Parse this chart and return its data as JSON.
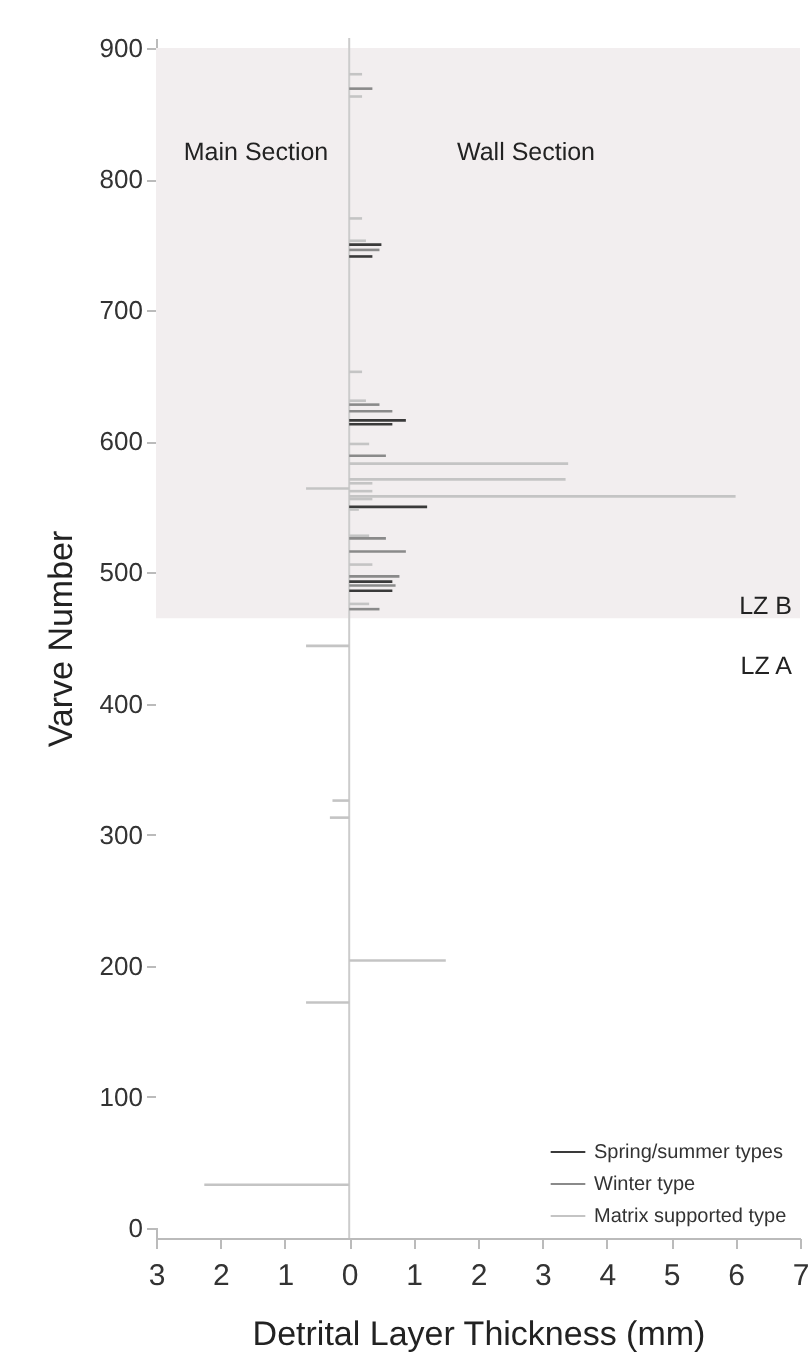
{
  "chart_data": {
    "type": "bar",
    "orientation": "horizontal",
    "xlabel": "Detrital Layer Thickness  (mm)",
    "ylabel": "Varve Number",
    "xlim": [
      -3,
      7
    ],
    "xticks": [
      {
        "value": -3,
        "label": "3"
      },
      {
        "value": -2,
        "label": "2"
      },
      {
        "value": -1,
        "label": "1"
      },
      0,
      1,
      2,
      3,
      4,
      5,
      6,
      7
    ],
    "ylim": [
      0,
      900
    ],
    "yticks": [
      0,
      100,
      200,
      300,
      400,
      500,
      600,
      700,
      800,
      900
    ],
    "series": [
      {
        "name": "Spring/summer types",
        "color": "#3a3a3a",
        "x": [
          750,
          741,
          616,
          613,
          550,
          493,
          486
        ],
        "values": [
          0.5,
          0.36,
          0.88,
          0.67,
          1.21,
          0.67,
          0.67
        ]
      },
      {
        "name": "Winter type",
        "color": "#8a8a8a",
        "x": [
          869,
          746,
          628,
          623,
          589,
          526,
          516,
          497,
          490,
          472
        ],
        "values": [
          0.36,
          0.47,
          0.47,
          0.67,
          0.57,
          0.57,
          0.88,
          0.78,
          0.72,
          0.47
        ]
      },
      {
        "name": "Matrix supported type",
        "color": "#c4c4c4",
        "x": [
          880,
          863,
          770,
          753,
          653,
          631,
          598,
          583,
          571,
          568,
          564,
          562,
          558,
          556,
          548,
          528,
          506,
          476,
          444,
          326,
          313,
          204,
          172,
          33
        ],
        "values": [
          0.2,
          0.2,
          0.2,
          0.26,
          0.2,
          0.26,
          0.31,
          3.4,
          3.36,
          0.36,
          -0.67,
          0.36,
          6.0,
          0.36,
          0.15,
          0.31,
          0.36,
          0.31,
          -0.67,
          -0.26,
          -0.3,
          1.5,
          -0.67,
          -2.25
        ]
      }
    ],
    "bands": [
      {
        "axis": "y",
        "from": 465,
        "to": 900,
        "color": "#f2eeef"
      }
    ],
    "ref_lines": [
      {
        "axis": "x",
        "value": 0,
        "color": "#cccccc"
      }
    ],
    "annotations": [
      "Main Section",
      "Wall Section",
      "LZ B",
      "LZ A"
    ],
    "legend": "bottom right",
    "grid": false
  }
}
